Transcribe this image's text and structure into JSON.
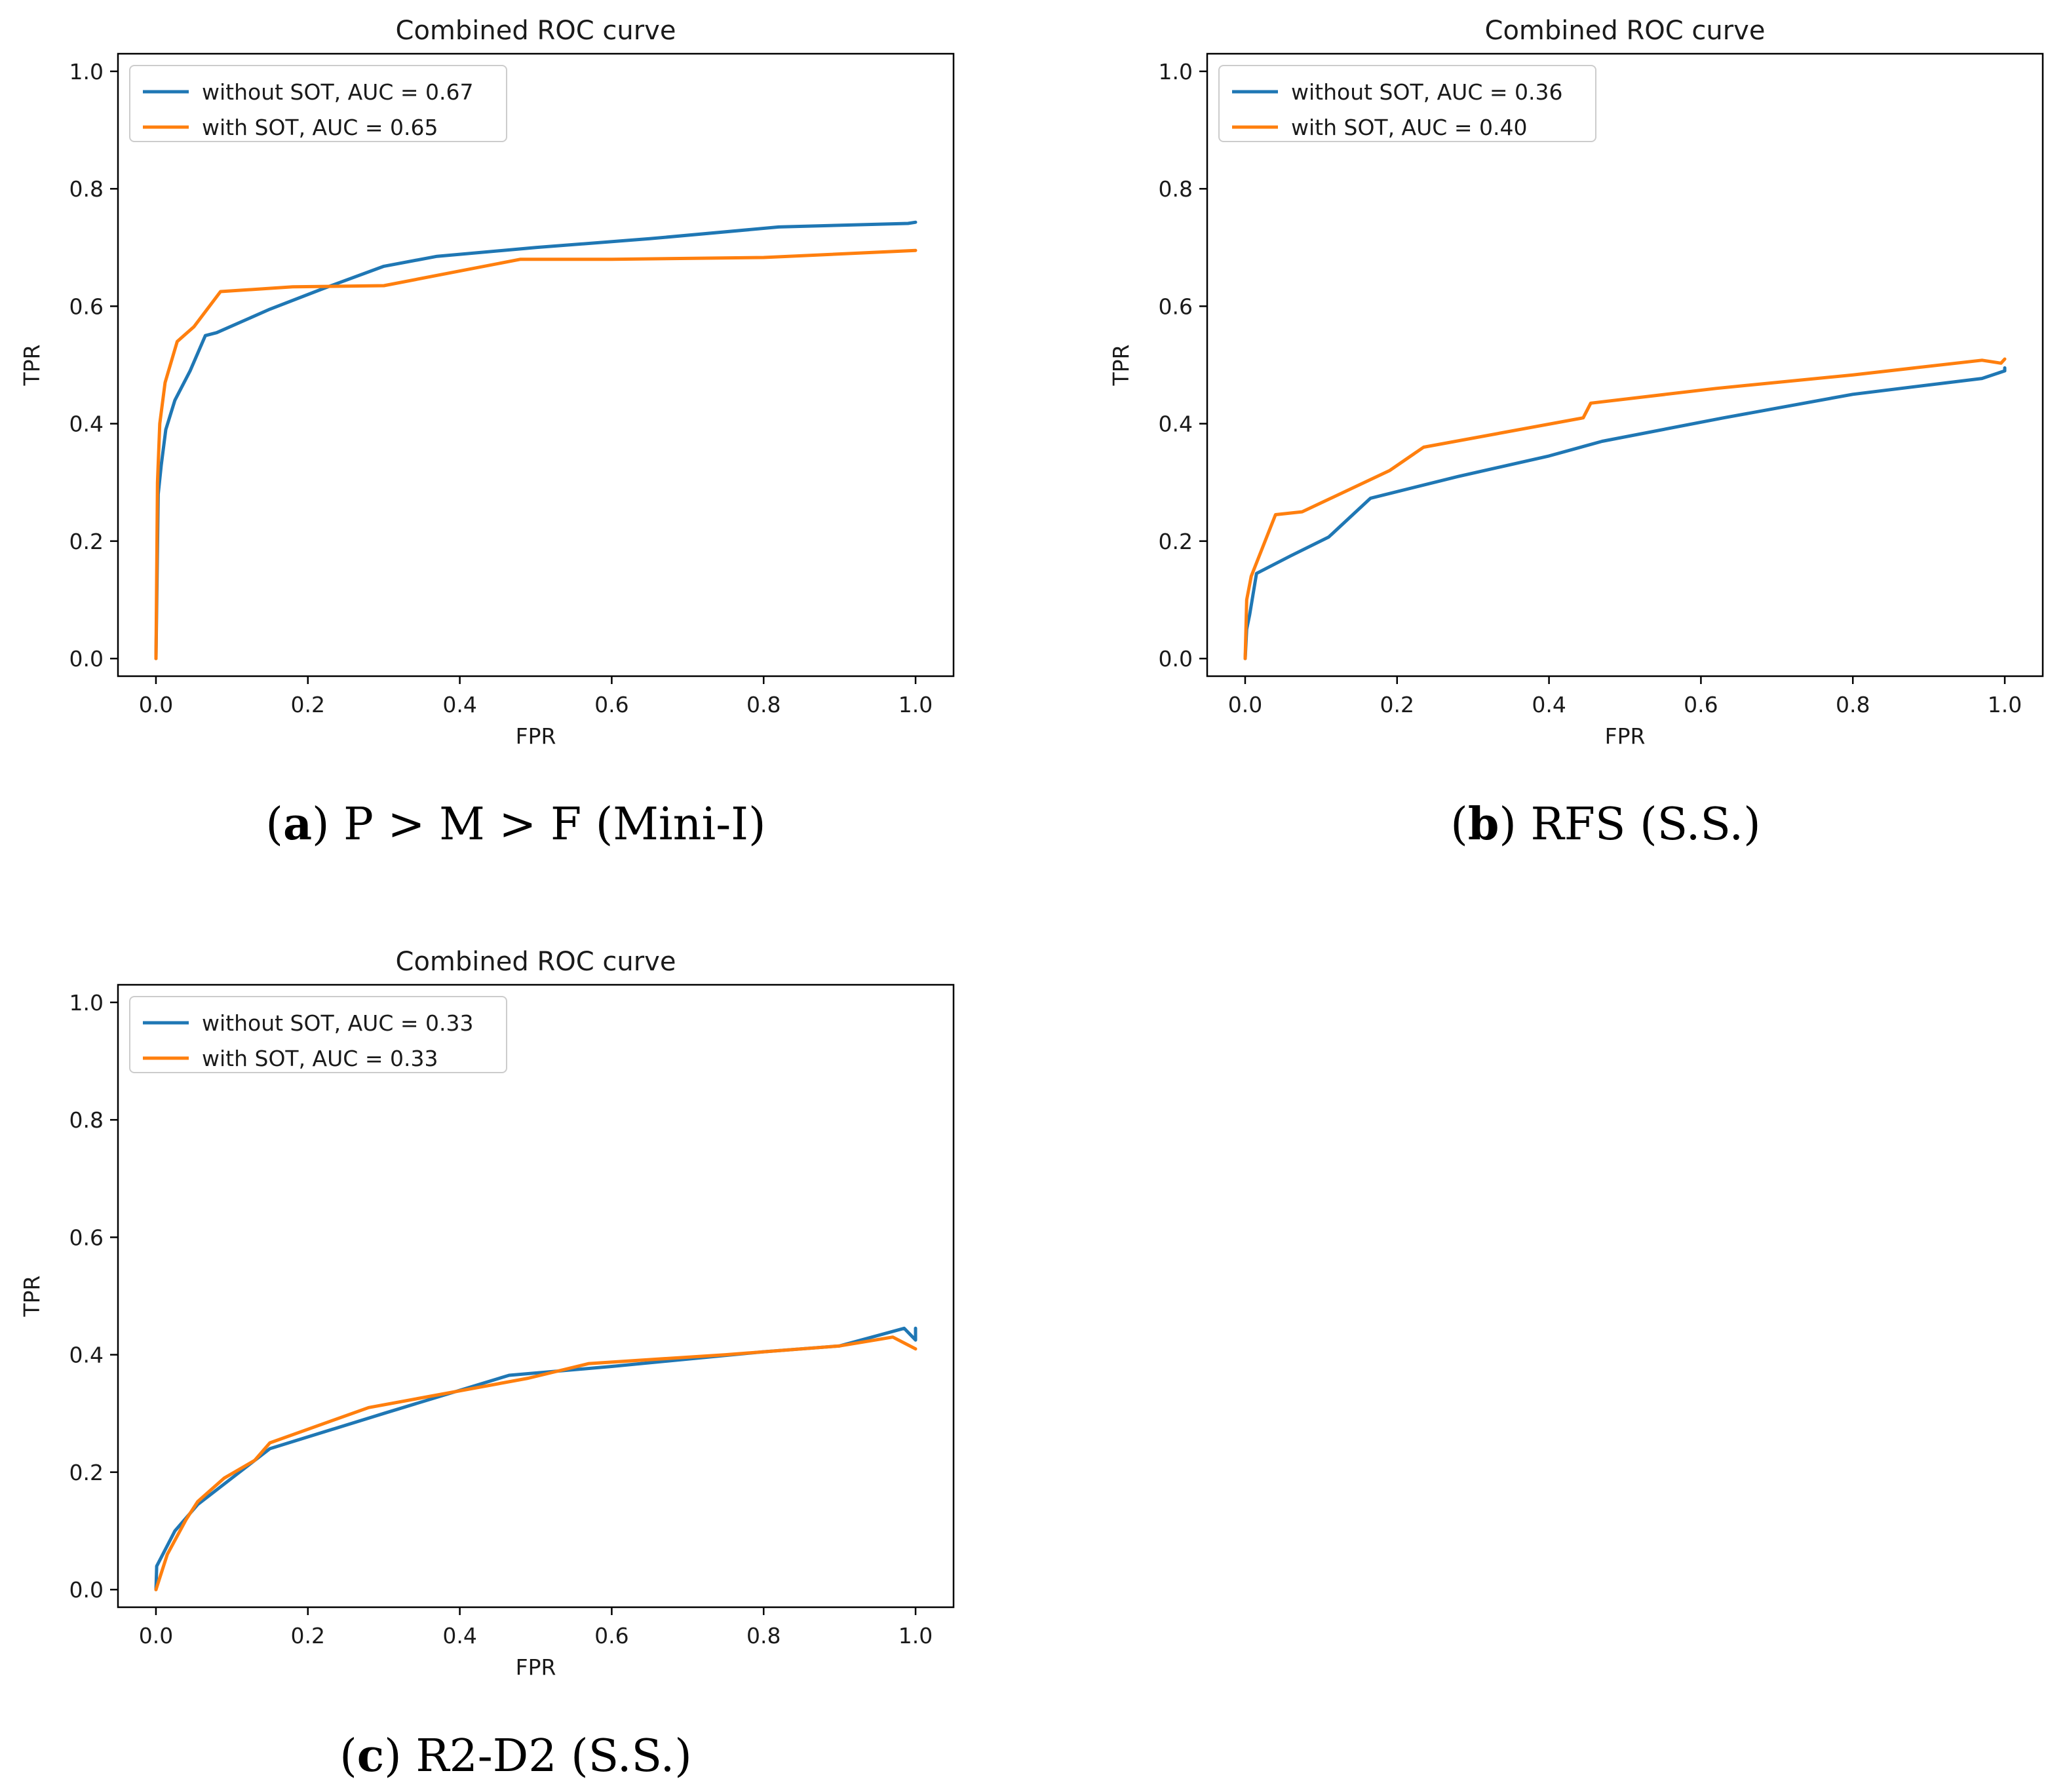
{
  "figure": {
    "captions": [
      {
        "letter": "a",
        "text": " P > M > F (Mini-I)"
      },
      {
        "letter": "b",
        "text": " RFS (S.S.)"
      },
      {
        "letter": "c",
        "text": " R2-D2 (S.S.)"
      }
    ]
  },
  "colors": {
    "without_sot": "#1f77b4",
    "with_sot": "#ff7f0e",
    "axis": "#000000",
    "text": "#1a1a1a"
  },
  "chart_data": [
    {
      "type": "line",
      "panel": "a",
      "title": "Combined ROC curve",
      "xlabel": "FPR",
      "ylabel": "TPR",
      "xlim": [
        -0.05,
        1.05
      ],
      "ylim": [
        -0.03,
        1.03
      ],
      "xticks": [
        0.0,
        0.2,
        0.4,
        0.6,
        0.8,
        1.0
      ],
      "yticks": [
        0.0,
        0.2,
        0.4,
        0.6,
        0.8,
        1.0
      ],
      "tick_format": [
        "0.0",
        "0.2",
        "0.4",
        "0.6",
        "0.8",
        "1.0"
      ],
      "grid": false,
      "legend": "top-left",
      "series": [
        {
          "name": "without SOT, AUC = 0.67",
          "key": "without_sot",
          "x": [
            0.0,
            0.003,
            0.007,
            0.013,
            0.025,
            0.045,
            0.065,
            0.08,
            0.15,
            0.22,
            0.3,
            0.37,
            0.5,
            0.65,
            0.82,
            0.99,
            1.0
          ],
          "y": [
            0.0,
            0.28,
            0.33,
            0.39,
            0.44,
            0.49,
            0.55,
            0.555,
            0.595,
            0.63,
            0.668,
            0.685,
            0.7,
            0.715,
            0.735,
            0.741,
            0.743
          ]
        },
        {
          "name": "with SOT, AUC = 0.65",
          "key": "with_sot",
          "x": [
            0.0,
            0.002,
            0.005,
            0.012,
            0.028,
            0.05,
            0.085,
            0.18,
            0.3,
            0.38,
            0.48,
            0.6,
            0.8,
            1.0
          ],
          "y": [
            0.0,
            0.3,
            0.4,
            0.47,
            0.54,
            0.565,
            0.625,
            0.633,
            0.635,
            0.655,
            0.68,
            0.68,
            0.683,
            0.695
          ]
        }
      ]
    },
    {
      "type": "line",
      "panel": "b",
      "title": "Combined ROC curve",
      "xlabel": "FPR",
      "ylabel": "TPR",
      "xlim": [
        -0.05,
        1.05
      ],
      "ylim": [
        -0.03,
        1.03
      ],
      "xticks": [
        0.0,
        0.2,
        0.4,
        0.6,
        0.8,
        1.0
      ],
      "yticks": [
        0.0,
        0.2,
        0.4,
        0.6,
        0.8,
        1.0
      ],
      "tick_format": [
        "0.0",
        "0.2",
        "0.4",
        "0.6",
        "0.8",
        "1.0"
      ],
      "grid": false,
      "legend": "top-left",
      "series": [
        {
          "name": "without SOT, AUC = 0.36",
          "key": "without_sot",
          "x": [
            0.0,
            0.002,
            0.006,
            0.015,
            0.06,
            0.11,
            0.165,
            0.28,
            0.4,
            0.47,
            0.63,
            0.8,
            0.97,
            1.0,
            1.0
          ],
          "y": [
            0.0,
            0.05,
            0.075,
            0.145,
            0.175,
            0.207,
            0.273,
            0.31,
            0.345,
            0.37,
            0.41,
            0.45,
            0.477,
            0.49,
            0.495
          ]
        },
        {
          "name": "with SOT, AUC = 0.40",
          "key": "with_sot",
          "x": [
            0.0,
            0.002,
            0.008,
            0.04,
            0.075,
            0.19,
            0.235,
            0.445,
            0.455,
            0.62,
            0.8,
            0.97,
            0.995,
            1.0
          ],
          "y": [
            0.0,
            0.1,
            0.14,
            0.245,
            0.25,
            0.32,
            0.36,
            0.41,
            0.435,
            0.46,
            0.483,
            0.508,
            0.503,
            0.51
          ]
        }
      ]
    },
    {
      "type": "line",
      "panel": "c",
      "title": "Combined ROC curve",
      "xlabel": "FPR",
      "ylabel": "TPR",
      "xlim": [
        -0.05,
        1.05
      ],
      "ylim": [
        -0.03,
        1.03
      ],
      "xticks": [
        0.0,
        0.2,
        0.4,
        0.6,
        0.8,
        1.0
      ],
      "yticks": [
        0.0,
        0.2,
        0.4,
        0.6,
        0.8,
        1.0
      ],
      "tick_format": [
        "0.0",
        "0.2",
        "0.4",
        "0.6",
        "0.8",
        "1.0"
      ],
      "grid": false,
      "legend": "top-left",
      "series": [
        {
          "name": "without SOT, AUC = 0.33",
          "key": "without_sot",
          "x": [
            0.0,
            0.001,
            0.025,
            0.055,
            0.1,
            0.15,
            0.3,
            0.465,
            0.6,
            0.8,
            0.9,
            0.985,
            1.0,
            1.0
          ],
          "y": [
            0.0,
            0.04,
            0.1,
            0.145,
            0.19,
            0.24,
            0.3,
            0.365,
            0.38,
            0.405,
            0.415,
            0.445,
            0.425,
            0.445
          ]
        },
        {
          "name": "with SOT, AUC = 0.33",
          "key": "with_sot",
          "x": [
            0.0,
            0.015,
            0.04,
            0.055,
            0.09,
            0.13,
            0.15,
            0.28,
            0.49,
            0.57,
            0.75,
            0.9,
            0.97,
            1.0
          ],
          "y": [
            0.0,
            0.06,
            0.12,
            0.15,
            0.19,
            0.22,
            0.25,
            0.31,
            0.36,
            0.385,
            0.4,
            0.415,
            0.43,
            0.41
          ]
        }
      ]
    }
  ]
}
